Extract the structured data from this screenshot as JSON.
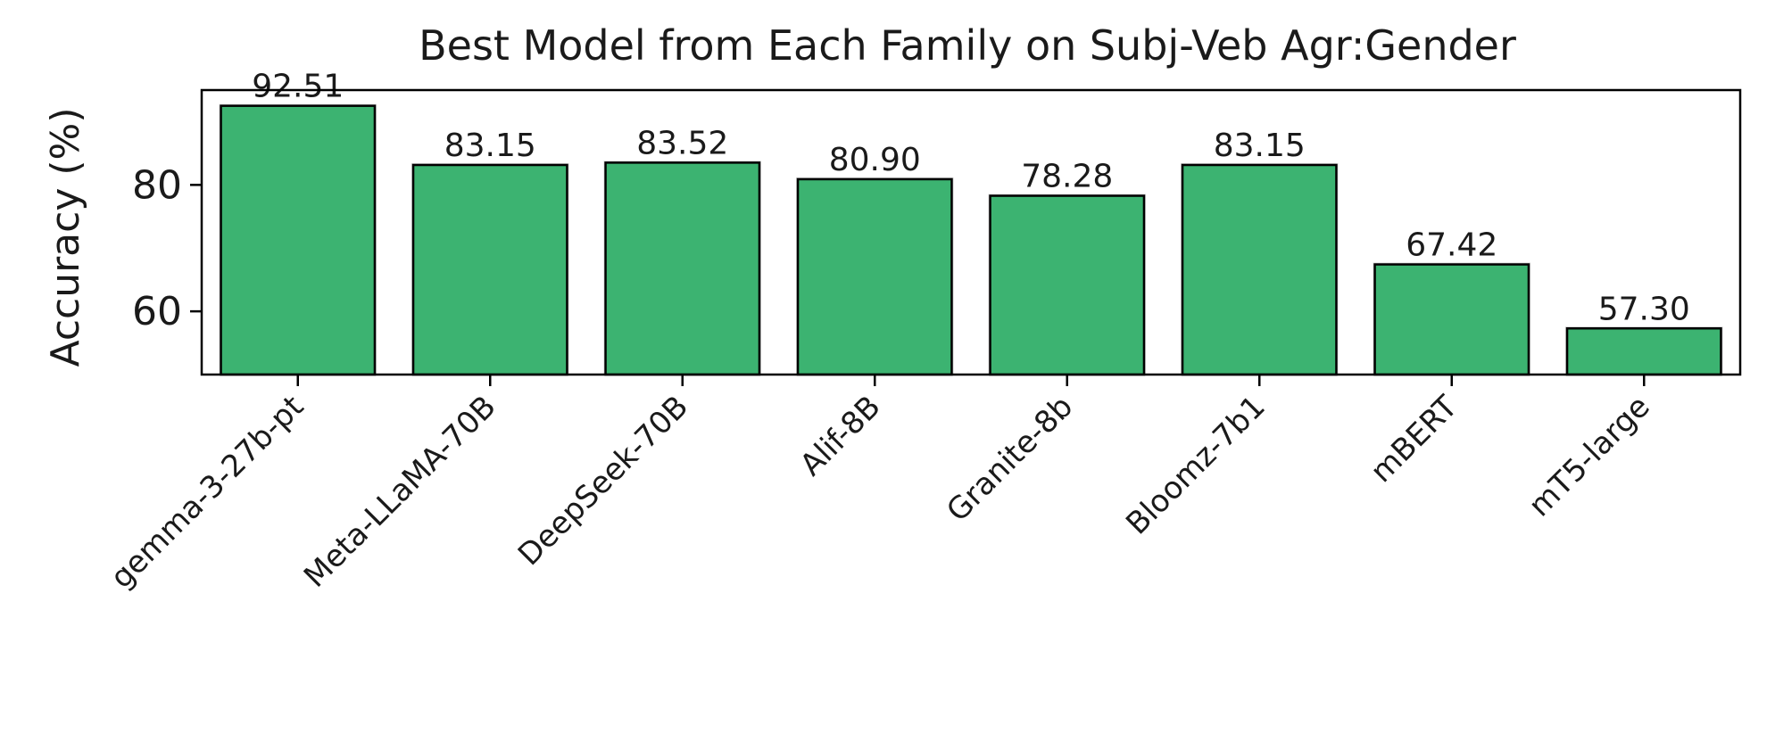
{
  "chart_data": {
    "type": "bar",
    "title": "Best Model from Each Family on Subj-Veb Agr:Gender",
    "xlabel": "",
    "ylabel": "Accuracy (%)",
    "categories": [
      "gemma-3-27b-pt",
      "Meta-LLaMA-70B",
      "DeepSeek-70B",
      "Alif-8B",
      "Granite-8b",
      "Bloomz-7b1",
      "mBERT",
      "mT5-large"
    ],
    "values": [
      92.51,
      83.15,
      83.52,
      80.9,
      78.28,
      83.15,
      67.42,
      57.3
    ],
    "value_labels": [
      "92.51",
      "83.15",
      "83.52",
      "80.90",
      "78.28",
      "83.15",
      "67.42",
      "57.30"
    ],
    "ylim": [
      50,
      95
    ],
    "yticks": [
      60,
      80
    ],
    "ytick_labels": [
      "60",
      "80"
    ],
    "grid": false,
    "bar_color": "#3cb371",
    "edge_color": "#000000"
  }
}
